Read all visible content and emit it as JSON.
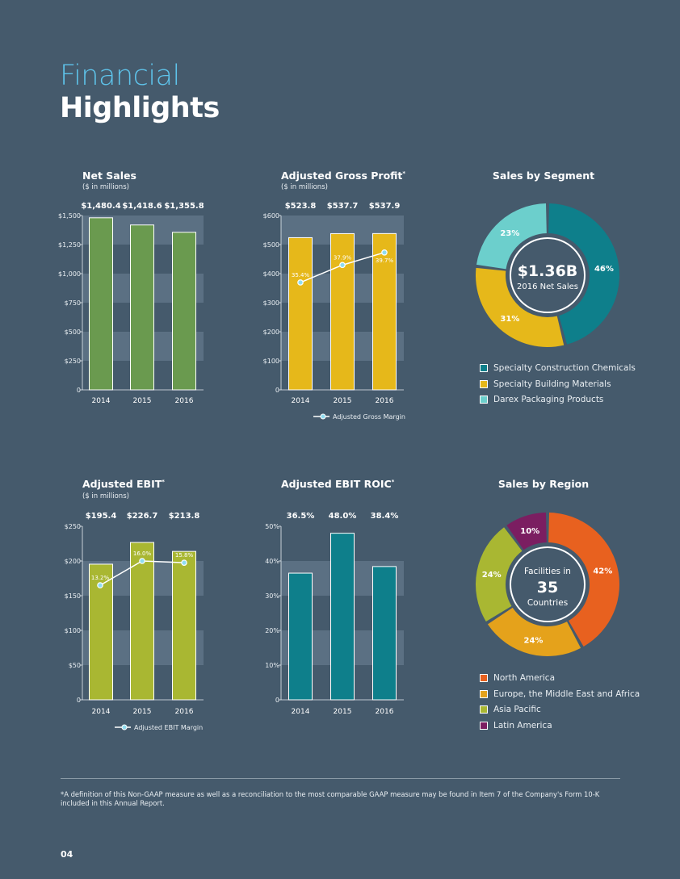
{
  "page": {
    "title_line1": "Financial",
    "title_line2": "Highlights",
    "footnote": "*A definition of this Non-GAAP measure as well as a reconciliation to the most comparable GAAP measure may be found in Item 7 of the Company's Form 10-K included in this Annual Report.",
    "page_number": "04"
  },
  "colors": {
    "background": "#455a6c",
    "band": "#5b7083",
    "green": "#6a9a4f",
    "gold": "#e6b81a",
    "lime": "#a9b732",
    "teal": "#0e7f8b",
    "turquoise": "#6ccfcc",
    "orange": "#e8611f",
    "amber": "#e5a21b",
    "purple": "#7b1e61",
    "title_blue": "#5ec3ea",
    "line_marker": "#8fdcf0"
  },
  "chart_data": [
    {
      "id": "net_sales",
      "type": "bar",
      "title": "Net Sales",
      "subtitle": "($ in millions)",
      "categories": [
        "2014",
        "2015",
        "2016"
      ],
      "values": [
        1480.4,
        1418.6,
        1355.8
      ],
      "value_labels": [
        "$1,480.4",
        "$1,418.6",
        "$1,355.8"
      ],
      "ylim": [
        0,
        1500
      ],
      "yticks": [
        0,
        250,
        500,
        750,
        1000,
        1250,
        1500
      ],
      "ytick_labels": [
        "0",
        "$250",
        "$500",
        "$750",
        "$1,000",
        "$1,250",
        "$1,500"
      ],
      "bar_color": "#6a9a4f"
    },
    {
      "id": "adjusted_gross_profit",
      "type": "bar",
      "title": "Adjusted Gross Profit*",
      "subtitle": "($ in millions)",
      "categories": [
        "2014",
        "2015",
        "2016"
      ],
      "values": [
        523.8,
        537.7,
        537.9
      ],
      "value_labels": [
        "$523.8",
        "$537.7",
        "$537.9"
      ],
      "ylim": [
        0,
        600
      ],
      "yticks": [
        0,
        100,
        200,
        300,
        400,
        500,
        600
      ],
      "ytick_labels": [
        "0",
        "$100",
        "$200",
        "$300",
        "$400",
        "$500",
        "$600"
      ],
      "bar_color": "#e6b81a",
      "line": {
        "name": "Adjusted Gross Margin",
        "values": [
          35.4,
          37.9,
          39.7
        ],
        "labels": [
          "35.4%",
          "37.9%",
          "39.7%"
        ],
        "ylim": [
          20,
          45
        ]
      }
    },
    {
      "id": "sales_by_segment",
      "type": "pie",
      "title": "Sales by Segment",
      "center_value": "$1.36B",
      "center_label": "2016 Net Sales",
      "slices": [
        {
          "name": "Specialty Construction Chemicals",
          "value": 46,
          "label": "46%",
          "color": "#0e7f8b"
        },
        {
          "name": "Specialty Building Materials",
          "value": 31,
          "label": "31%",
          "color": "#e6b81a"
        },
        {
          "name": "Darex Packaging Products",
          "value": 23,
          "label": "23%",
          "color": "#6ccfcc"
        }
      ]
    },
    {
      "id": "adjusted_ebit",
      "type": "bar",
      "title": "Adjusted EBIT*",
      "subtitle": "($ in millions)",
      "categories": [
        "2014",
        "2015",
        "2016"
      ],
      "values": [
        195.4,
        226.7,
        213.8
      ],
      "value_labels": [
        "$195.4",
        "$226.7",
        "$213.8"
      ],
      "ylim": [
        0,
        250
      ],
      "yticks": [
        0,
        50,
        100,
        150,
        200,
        250
      ],
      "ytick_labels": [
        "0",
        "$50",
        "$100",
        "$150",
        "$200",
        "$250"
      ],
      "bar_color": "#a9b732",
      "line": {
        "name": "Adjusted EBIT Margin",
        "values": [
          13.2,
          16.0,
          15.8
        ],
        "labels": [
          "13.2%",
          "16.0%",
          "15.8%"
        ],
        "ylim": [
          0,
          20
        ]
      }
    },
    {
      "id": "adjusted_ebit_roic",
      "type": "bar",
      "title": "Adjusted EBIT ROIC*",
      "subtitle": "",
      "categories": [
        "2014",
        "2015",
        "2016"
      ],
      "values": [
        36.5,
        48.0,
        38.4
      ],
      "value_labels": [
        "36.5%",
        "48.0%",
        "38.4%"
      ],
      "ylim": [
        0,
        50
      ],
      "yticks": [
        0,
        10,
        20,
        30,
        40,
        50
      ],
      "ytick_labels": [
        "0",
        "10%",
        "20%",
        "30%",
        "40%",
        "50%"
      ],
      "bar_color": "#0e7f8b"
    },
    {
      "id": "sales_by_region",
      "type": "pie",
      "title": "Sales by Region",
      "center_top": "Facilities in",
      "center_value": "35",
      "center_label": "Countries",
      "slices": [
        {
          "name": "North America",
          "value": 42,
          "label": "42%",
          "color": "#e8611f"
        },
        {
          "name": "Europe, the Middle East and Africa",
          "value": 24,
          "label": "24%",
          "color": "#e5a21b"
        },
        {
          "name": "Asia Pacific",
          "value": 24,
          "label": "24%",
          "color": "#a9b732"
        },
        {
          "name": "Latin America",
          "value": 10,
          "label": "10%",
          "color": "#7b1e61"
        }
      ]
    }
  ]
}
